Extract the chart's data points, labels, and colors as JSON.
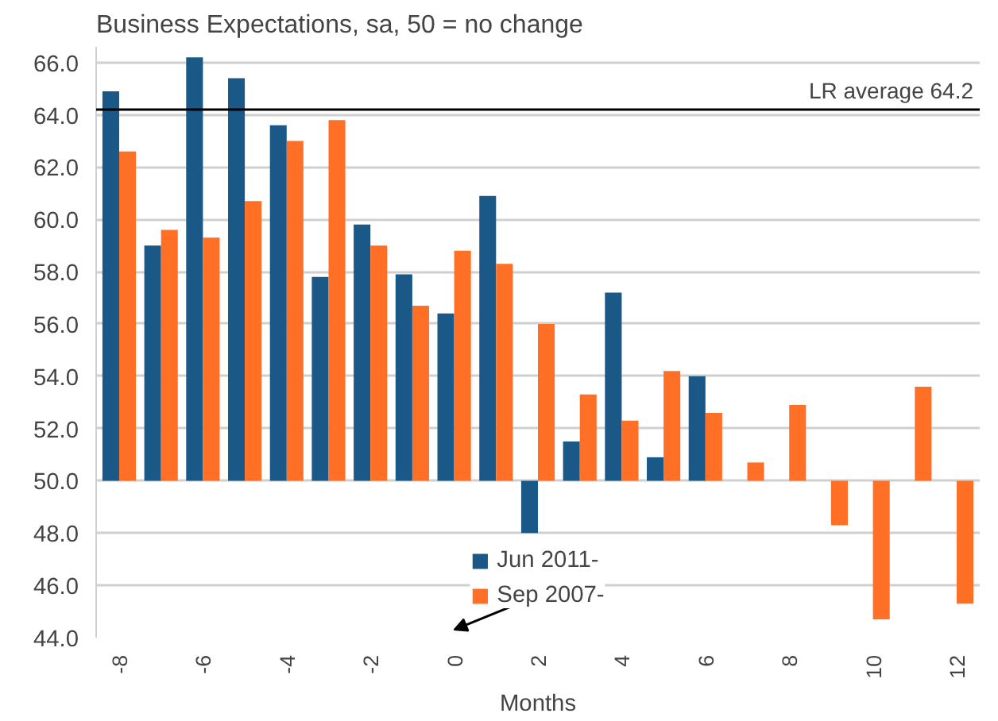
{
  "chart_data": {
    "type": "bar",
    "title": "Business Expectations, sa, 50 = no change",
    "xlabel": "Months",
    "series": [
      {
        "name": "Jun 2011-",
        "color": "#1a5888",
        "x": [
          -8,
          -7,
          -6,
          -5,
          -4,
          -3,
          -2,
          -1,
          0,
          1,
          2,
          3,
          4,
          5,
          6
        ],
        "base": [
          50,
          50,
          50,
          50,
          50,
          50,
          50,
          50,
          50,
          50,
          50,
          50,
          50,
          50,
          50
        ],
        "values": [
          14.9,
          9.0,
          16.2,
          15.4,
          13.6,
          7.8,
          9.8,
          7.9,
          6.4,
          10.9,
          -2.0,
          1.5,
          7.2,
          0.9,
          4.0
        ]
      },
      {
        "name": "Sep 2007-",
        "color": "#ff6f26",
        "x": [
          -8,
          -7,
          -6,
          -5,
          -4,
          -3,
          -2,
          -1,
          0,
          1,
          2,
          3,
          4,
          5,
          6,
          7,
          8,
          9,
          10,
          11,
          12
        ],
        "base": [
          50,
          50,
          50,
          50,
          50,
          50,
          50,
          50,
          50,
          50,
          50,
          50,
          50,
          50,
          50,
          50,
          50,
          50,
          50,
          50,
          50
        ],
        "values": [
          12.6,
          9.6,
          9.3,
          10.7,
          13.0,
          13.8,
          9.0,
          6.7,
          8.8,
          8.3,
          6.0,
          3.3,
          2.3,
          4.2,
          2.6,
          0.7,
          2.9,
          -1.7,
          -5.3,
          3.6,
          -4.7
        ]
      }
    ],
    "xlim": [
      -8.55,
      12.55
    ],
    "xticks": [
      -8,
      -6,
      -4,
      -2,
      0,
      2,
      4,
      6,
      8,
      10,
      12
    ],
    "ylim": [
      44,
      66.6
    ],
    "yticks": [
      {
        "value": 44,
        "label": "44.0"
      },
      {
        "value": 46,
        "label": "46.0"
      },
      {
        "value": 48,
        "label": "48.0"
      },
      {
        "value": 50,
        "label": "50.0"
      },
      {
        "value": 52,
        "label": "52.0"
      },
      {
        "value": 54,
        "label": "54.0"
      },
      {
        "value": 56,
        "label": "56.0"
      },
      {
        "value": 58,
        "label": "58.0"
      },
      {
        "value": 60,
        "label": "60.0"
      },
      {
        "value": 62,
        "label": "62.0"
      },
      {
        "value": 64,
        "label": "64.0"
      },
      {
        "value": 66,
        "label": "66.0"
      }
    ],
    "ref_lines": [
      {
        "axis": "y",
        "value": 64.2,
        "label": "LR average 64.2",
        "color": "#000000"
      }
    ],
    "grid": "y",
    "legend": "bottom"
  }
}
